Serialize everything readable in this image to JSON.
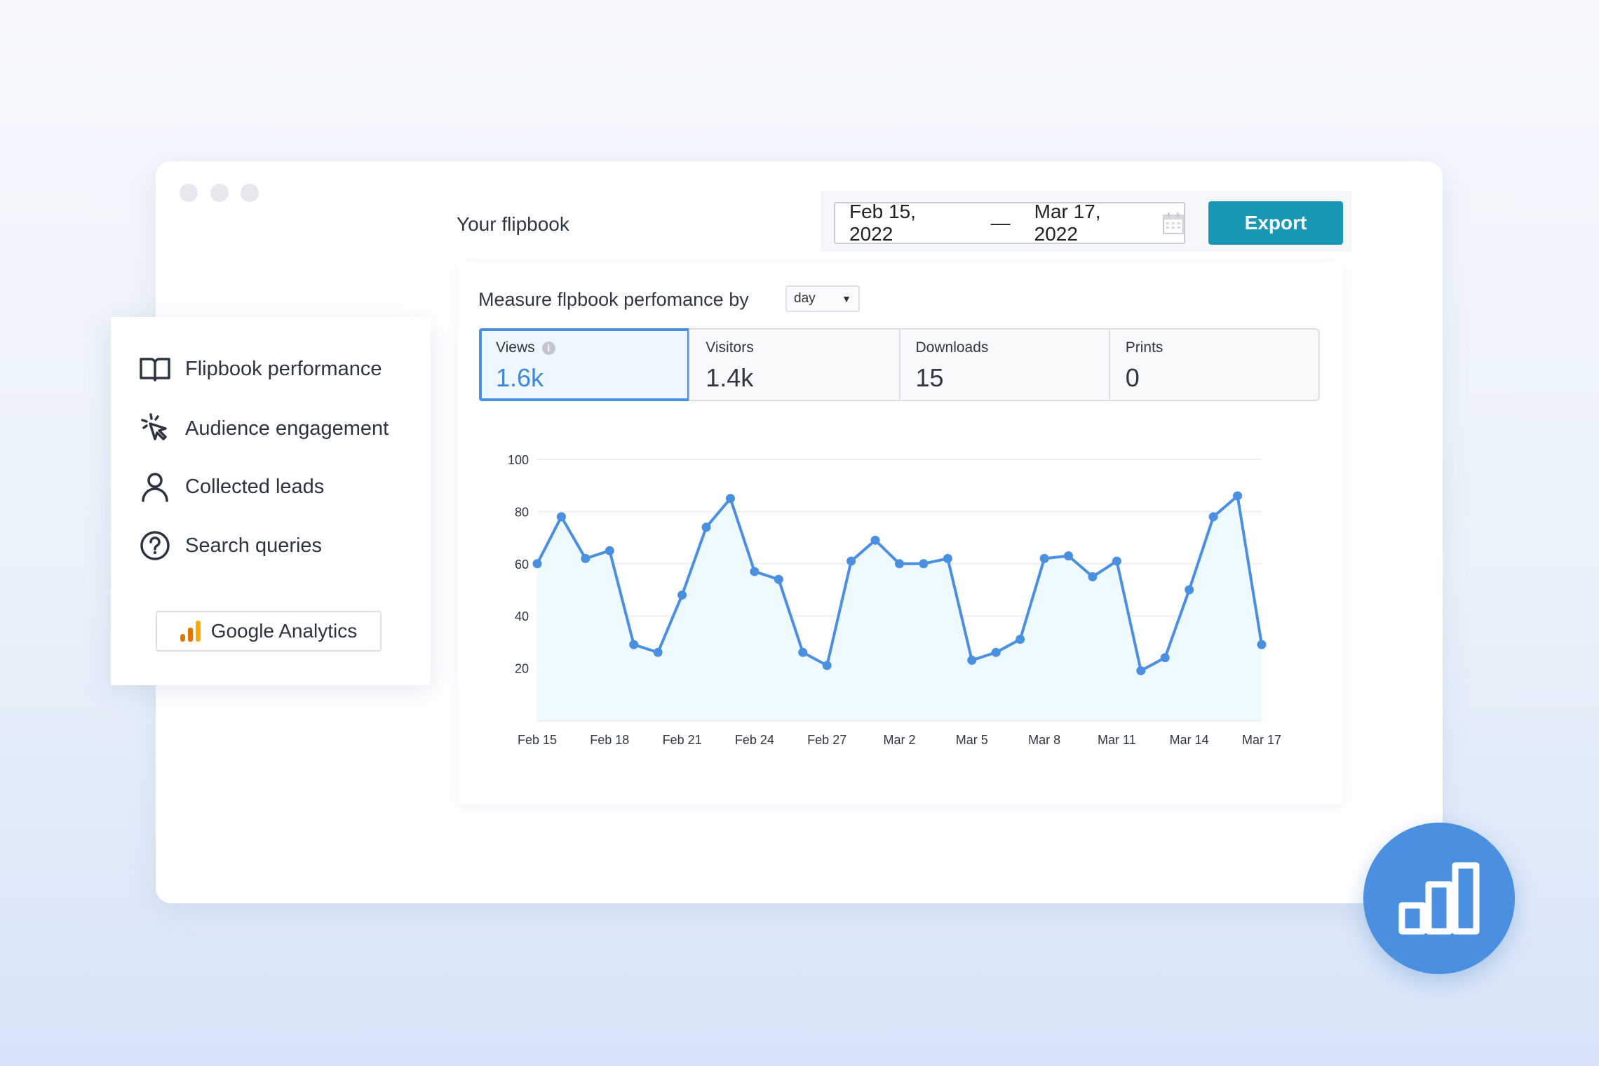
{
  "window": {
    "title": "Your flipbook"
  },
  "header": {
    "date_from": "Feb 15, 2022",
    "date_separator": "—",
    "date_to": "Mar 17, 2022",
    "export_label": "Export"
  },
  "measure": {
    "label": "Measure flpbook perfomance by",
    "select_value": "day"
  },
  "metrics": [
    {
      "label": "Views",
      "value": "1.6k",
      "active": true
    },
    {
      "label": "Visitors",
      "value": "1.4k"
    },
    {
      "label": "Downloads",
      "value": "15"
    },
    {
      "label": "Prints",
      "value": "0"
    }
  ],
  "sidebar": {
    "items": [
      {
        "label": "Flipbook performance",
        "icon": "book-icon"
      },
      {
        "label": "Audience engagement",
        "icon": "cursor-click-icon"
      },
      {
        "label": "Collected leads",
        "icon": "user-icon"
      },
      {
        "label": "Search queries",
        "icon": "question-circle-icon"
      }
    ],
    "ga_label": "Google Analytics"
  },
  "colors": {
    "accent": "#4a8fe0",
    "export": "#1a97b5",
    "area": "#eefafd"
  },
  "chart_data": {
    "type": "area",
    "ylim": [
      0,
      100
    ],
    "yticks": [
      20,
      40,
      60,
      80,
      100
    ],
    "grid": true,
    "xtick_labels": [
      "Feb 15",
      "Feb 18",
      "Feb 21",
      "Feb 24",
      "Feb 27",
      "Mar 2",
      "Mar 5",
      "Mar 8",
      "Mar 11",
      "Mar 14",
      "Mar 17"
    ],
    "x": [
      "Feb 15",
      "Feb 16",
      "Feb 17",
      "Feb 18",
      "Feb 19",
      "Feb 20",
      "Feb 21",
      "Feb 22",
      "Feb 23",
      "Feb 24",
      "Feb 25",
      "Feb 26",
      "Feb 27",
      "Feb 28",
      "Mar 1",
      "Mar 2",
      "Mar 3",
      "Mar 4",
      "Mar 5",
      "Mar 6",
      "Mar 7",
      "Mar 8",
      "Mar 9",
      "Mar 10",
      "Mar 11",
      "Mar 12",
      "Mar 13",
      "Mar 14",
      "Mar 15",
      "Mar 16",
      "Mar 17"
    ],
    "values": [
      60,
      78,
      62,
      65,
      29,
      26,
      48,
      74,
      85,
      57,
      54,
      26,
      21,
      61,
      69,
      60,
      60,
      62,
      23,
      26,
      31,
      62,
      63,
      55,
      61,
      19,
      24,
      50,
      78,
      86,
      29
    ]
  }
}
